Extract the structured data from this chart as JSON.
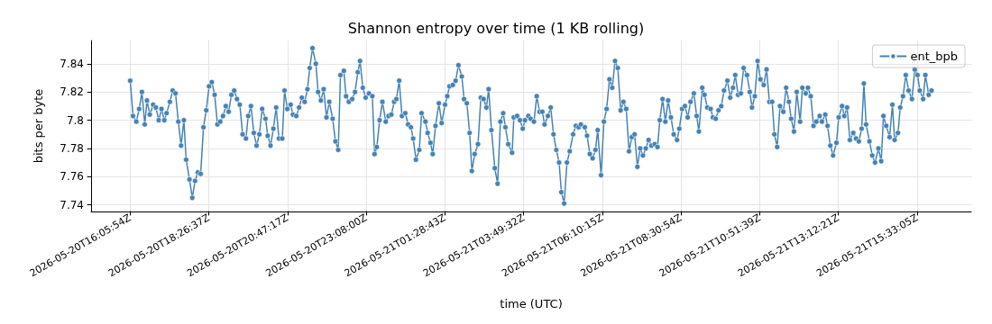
{
  "chart_data": {
    "type": "line",
    "title": "Shannon entropy over time (1 KB rolling)",
    "xlabel": "time (UTC)",
    "ylabel": "bits per byte",
    "xlim": [
      "2026-05-20T14:56",
      "2026-05-21T17:10"
    ],
    "ylim": [
      7.7353,
      7.8565
    ],
    "xticks": [
      "2026-05-20T16:05:54Z",
      "2026-05-20T18:26:37Z",
      "2026-05-20T20:47:17Z",
      "2026-05-20T23:08:00Z",
      "2026-05-21T01:28:43Z",
      "2026-05-21T03:49:32Z",
      "2026-05-21T06:10:15Z",
      "2026-05-21T08:30:54Z",
      "2026-05-21T10:51:39Z",
      "2026-05-21T13:12:21Z",
      "2026-05-21T15:33:05Z"
    ],
    "yticks": [
      7.74,
      7.76,
      7.78,
      7.8,
      7.82,
      7.84
    ],
    "grid": true,
    "legend": "top right",
    "marker": "circle",
    "line_style": "solid",
    "series": [
      {
        "name": "ent_bpb",
        "color": "#4682b4",
        "x": [
          "2026-05-20T16:06",
          "2026-05-20T16:11",
          "2026-05-20T16:17",
          "2026-05-20T16:22",
          "2026-05-20T16:27",
          "2026-05-20T16:32",
          "2026-05-20T16:36",
          "2026-05-20T16:41",
          "2026-05-20T16:47",
          "2026-05-20T16:52",
          "2026-05-20T16:57",
          "2026-05-20T17:02",
          "2026-05-20T17:07",
          "2026-05-20T17:11",
          "2026-05-20T17:17",
          "2026-05-20T17:22",
          "2026-05-20T17:27",
          "2026-05-20T17:32",
          "2026-05-20T17:37",
          "2026-05-20T17:42",
          "2026-05-20T17:46",
          "2026-05-20T17:52",
          "2026-05-20T17:57",
          "2026-05-20T18:02",
          "2026-05-20T18:07",
          "2026-05-20T18:12",
          "2026-05-20T18:17",
          "2026-05-20T18:22",
          "2026-05-20T18:27",
          "2026-05-20T18:32",
          "2026-05-20T18:37",
          "2026-05-20T18:42",
          "2026-05-20T18:47",
          "2026-05-20T18:52",
          "2026-05-20T18:57",
          "2026-05-20T19:02",
          "2026-05-20T19:07",
          "2026-05-20T19:12",
          "2026-05-20T19:17",
          "2026-05-20T19:22",
          "2026-05-20T19:27",
          "2026-05-20T19:33",
          "2026-05-20T19:37",
          "2026-05-20T19:42",
          "2026-05-20T19:47",
          "2026-05-20T19:52",
          "2026-05-20T19:57",
          "2026-05-20T20:02",
          "2026-05-20T20:08",
          "2026-05-20T20:12",
          "2026-05-20T20:17",
          "2026-05-20T20:22",
          "2026-05-20T20:27",
          "2026-05-20T20:32",
          "2026-05-20T20:38",
          "2026-05-20T20:42",
          "2026-05-20T20:47",
          "2026-05-20T20:53",
          "2026-05-20T20:57",
          "2026-05-20T21:03",
          "2026-05-20T21:08",
          "2026-05-20T21:13",
          "2026-05-20T21:18",
          "2026-05-20T21:23",
          "2026-05-20T21:27",
          "2026-05-20T21:32",
          "2026-05-20T21:38",
          "2026-05-20T21:42",
          "2026-05-20T21:47",
          "2026-05-20T21:52",
          "2026-05-20T21:57",
          "2026-05-20T22:02",
          "2026-05-20T22:08",
          "2026-05-20T22:13",
          "2026-05-20T22:18",
          "2026-05-20T22:22",
          "2026-05-20T22:28",
          "2026-05-20T22:32",
          "2026-05-20T22:37",
          "2026-05-20T22:43",
          "2026-05-20T22:48",
          "2026-05-20T22:53",
          "2026-05-20T22:57",
          "2026-05-20T23:02",
          "2026-05-20T23:07",
          "2026-05-20T23:13",
          "2026-05-20T23:19",
          "2026-05-20T23:23",
          "2026-05-20T23:27",
          "2026-05-20T23:32",
          "2026-05-20T23:37",
          "2026-05-20T23:43",
          "2026-05-20T23:48",
          "2026-05-20T23:53",
          "2026-05-20T23:58",
          "2026-05-21T00:02",
          "2026-05-21T00:07",
          "2026-05-21T00:12",
          "2026-05-21T00:18",
          "2026-05-21T00:23",
          "2026-05-21T00:28",
          "2026-05-21T00:32",
          "2026-05-21T00:37",
          "2026-05-21T00:43",
          "2026-05-21T00:47",
          "2026-05-21T00:54",
          "2026-05-21T00:58",
          "2026-05-21T01:03",
          "2026-05-21T01:07",
          "2026-05-21T01:12",
          "2026-05-21T01:18",
          "2026-05-21T01:23",
          "2026-05-21T01:29",
          "2026-05-21T01:33",
          "2026-05-21T01:37",
          "2026-05-21T01:43",
          "2026-05-21T01:48",
          "2026-05-21T01:53",
          "2026-05-21T01:59",
          "2026-05-21T02:03",
          "2026-05-21T02:08",
          "2026-05-21T02:13",
          "2026-05-21T02:17",
          "2026-05-21T02:22",
          "2026-05-21T02:28",
          "2026-05-21T02:33",
          "2026-05-21T02:38",
          "2026-05-21T02:43",
          "2026-05-21T02:47",
          "2026-05-21T02:52",
          "2026-05-21T02:58",
          "2026-05-21T03:03",
          "2026-05-21T03:08",
          "2026-05-21T03:13",
          "2026-05-21T03:17",
          "2026-05-21T03:22",
          "2026-05-21T03:29",
          "2026-05-21T03:32",
          "2026-05-21T03:38",
          "2026-05-21T03:43",
          "2026-05-21T03:48",
          "2026-05-21T03:52",
          "2026-05-21T03:58",
          "2026-05-21T04:02",
          "2026-05-21T04:08",
          "2026-05-21T04:13",
          "2026-05-21T04:18",
          "2026-05-21T04:23",
          "2026-05-21T04:27",
          "2026-05-21T04:33",
          "2026-05-21T04:38",
          "2026-05-21T04:43",
          "2026-05-21T04:48",
          "2026-05-21T04:53",
          "2026-05-21T04:57",
          "2026-05-21T05:02",
          "2026-05-21T05:07",
          "2026-05-21T05:12",
          "2026-05-21T05:18",
          "2026-05-21T05:23",
          "2026-05-21T05:28",
          "2026-05-21T05:32",
          "2026-05-21T05:39",
          "2026-05-21T05:43",
          "2026-05-21T05:48",
          "2026-05-21T05:53",
          "2026-05-21T05:58",
          "2026-05-21T06:02",
          "2026-05-21T06:08",
          "2026-05-21T06:13",
          "2026-05-21T06:18",
          "2026-05-21T06:23",
          "2026-05-21T06:28",
          "2026-05-21T06:33",
          "2026-05-21T06:38",
          "2026-05-21T06:43",
          "2026-05-21T06:48",
          "2026-05-21T06:53",
          "2026-05-21T06:58",
          "2026-05-21T07:03",
          "2026-05-21T07:08",
          "2026-05-21T07:13",
          "2026-05-21T07:18",
          "2026-05-21T07:23",
          "2026-05-21T07:28",
          "2026-05-21T07:33",
          "2026-05-21T07:38",
          "2026-05-21T07:44",
          "2026-05-21T07:49",
          "2026-05-21T07:53",
          "2026-05-21T07:58",
          "2026-05-21T08:03",
          "2026-05-21T08:08",
          "2026-05-21T08:13",
          "2026-05-21T08:18",
          "2026-05-21T08:24",
          "2026-05-21T08:28",
          "2026-05-21T08:33",
          "2026-05-21T08:38",
          "2026-05-21T08:43",
          "2026-05-21T08:48",
          "2026-05-21T08:54",
          "2026-05-21T08:59",
          "2026-05-21T09:03",
          "2026-05-21T09:09",
          "2026-05-21T09:13",
          "2026-05-21T09:18",
          "2026-05-21T09:24",
          "2026-05-21T09:28",
          "2026-05-21T09:33",
          "2026-05-21T09:38",
          "2026-05-21T09:43",
          "2026-05-21T09:48",
          "2026-05-21T09:54",
          "2026-05-21T09:59",
          "2026-05-21T10:04",
          "2026-05-21T10:08",
          "2026-05-21T10:13",
          "2026-05-21T10:18",
          "2026-05-21T10:23",
          "2026-05-21T10:29",
          "2026-05-21T10:34",
          "2026-05-21T10:38",
          "2026-05-21T10:43",
          "2026-05-21T10:48",
          "2026-05-21T10:53",
          "2026-05-21T10:59",
          "2026-05-21T11:04",
          "2026-05-21T11:09",
          "2026-05-21T11:14",
          "2026-05-21T11:18",
          "2026-05-21T11:23",
          "2026-05-21T11:28",
          "2026-05-21T11:34",
          "2026-05-21T11:39",
          "2026-05-21T11:44",
          "2026-05-21T11:48",
          "2026-05-21T11:53",
          "2026-05-21T11:58",
          "2026-05-21T12:04",
          "2026-05-21T12:08",
          "2026-05-21T12:14",
          "2026-05-21T12:18",
          "2026-05-21T12:23",
          "2026-05-21T12:28",
          "2026-05-21T12:33",
          "2026-05-21T12:39",
          "2026-05-21T12:43",
          "2026-05-21T12:49",
          "2026-05-21T12:53",
          "2026-05-21T12:58",
          "2026-05-21T13:03",
          "2026-05-21T13:09",
          "2026-05-21T13:13",
          "2026-05-21T13:19",
          "2026-05-21T13:23",
          "2026-05-21T13:28",
          "2026-05-21T13:33",
          "2026-05-21T13:39",
          "2026-05-21T13:44",
          "2026-05-21T13:49",
          "2026-05-21T13:54",
          "2026-05-21T13:58",
          "2026-05-21T14:02",
          "2026-05-21T14:08",
          "2026-05-21T14:13",
          "2026-05-21T14:18",
          "2026-05-21T14:24",
          "2026-05-21T14:29",
          "2026-05-21T14:33",
          "2026-05-21T14:38",
          "2026-05-21T14:44",
          "2026-05-21T14:49",
          "2026-05-21T14:53",
          "2026-05-21T14:59",
          "2026-05-21T15:03",
          "2026-05-21T15:08",
          "2026-05-21T15:13",
          "2026-05-21T15:18",
          "2026-05-21T15:24",
          "2026-05-21T15:29",
          "2026-05-21T15:34",
          "2026-05-21T15:38",
          "2026-05-21T15:44",
          "2026-05-21T15:48",
          "2026-05-21T15:54",
          "2026-05-21T15:59"
        ],
        "values": [
          7.828,
          7.803,
          7.799,
          7.808,
          7.82,
          7.797,
          7.814,
          7.804,
          7.811,
          7.809,
          7.8,
          7.808,
          7.8,
          7.805,
          7.813,
          7.821,
          7.819,
          7.799,
          7.782,
          7.8,
          7.772,
          7.758,
          7.745,
          7.757,
          7.763,
          7.762,
          7.795,
          7.807,
          7.824,
          7.827,
          7.818,
          7.797,
          7.799,
          7.803,
          7.81,
          7.806,
          7.818,
          7.821,
          7.815,
          7.811,
          7.79,
          7.787,
          7.803,
          7.81,
          7.791,
          7.782,
          7.79,
          7.808,
          7.801,
          7.789,
          7.782,
          7.794,
          7.809,
          7.787,
          7.787,
          7.821,
          7.808,
          7.811,
          7.804,
          7.803,
          7.809,
          7.816,
          7.813,
          7.822,
          7.837,
          7.851,
          7.84,
          7.82,
          7.814,
          7.822,
          7.802,
          7.813,
          7.801,
          7.785,
          7.779,
          7.832,
          7.835,
          7.817,
          7.813,
          7.815,
          7.82,
          7.834,
          7.842,
          7.823,
          7.816,
          7.819,
          7.817,
          7.776,
          7.781,
          7.8,
          7.813,
          7.799,
          7.803,
          7.804,
          7.813,
          7.815,
          7.828,
          7.803,
          7.805,
          7.797,
          7.795,
          7.787,
          7.772,
          7.779,
          7.805,
          7.799,
          7.791,
          7.784,
          7.776,
          7.796,
          7.812,
          7.798,
          7.811,
          7.817,
          7.824,
          7.825,
          7.828,
          7.839,
          7.831,
          7.815,
          7.812,
          7.791,
          7.764,
          7.776,
          7.783,
          7.816,
          7.815,
          7.809,
          7.822,
          7.793,
          7.766,
          7.755,
          7.799,
          7.805,
          7.795,
          7.783,
          7.777,
          7.802,
          7.803,
          7.8,
          7.794,
          7.8,
          7.803,
          7.801,
          7.799,
          7.817,
          7.806,
          7.806,
          7.797,
          7.803,
          7.809,
          7.79,
          7.779,
          7.77,
          7.749,
          7.741,
          7.77,
          7.778,
          7.79,
          7.796,
          7.795,
          7.797,
          7.795,
          7.789,
          7.776,
          7.773,
          7.779,
          7.793,
          7.761,
          7.799,
          7.808,
          7.829,
          7.823,
          7.842,
          7.837,
          7.807,
          7.813,
          7.808,
          7.778,
          7.788,
          7.79,
          7.767,
          7.78,
          7.775,
          7.78,
          7.786,
          7.782,
          7.783,
          7.781,
          7.8,
          7.815,
          7.799,
          7.814,
          7.802,
          7.79,
          7.786,
          7.794,
          7.808,
          7.81,
          7.802,
          7.813,
          7.819,
          7.803,
          7.792,
          7.823,
          7.818,
          7.809,
          7.808,
          7.802,
          7.801,
          7.807,
          7.81,
          7.821,
          7.828,
          7.816,
          7.823,
          7.832,
          7.818,
          7.819,
          7.837,
          7.832,
          7.82,
          7.809,
          7.817,
          7.842,
          7.829,
          7.825,
          7.836,
          7.813,
          7.813,
          7.79,
          7.781,
          7.81,
          7.806,
          7.823,
          7.813,
          7.801,
          7.792,
          7.82,
          7.799,
          7.823,
          7.819,
          7.823,
          7.817,
          7.796,
          7.799,
          7.803,
          7.799,
          7.804,
          7.796,
          7.782,
          7.775,
          7.784,
          7.802,
          7.81,
          7.803,
          7.809,
          7.786,
          7.791,
          7.787,
          7.785,
          7.794,
          7.826,
          7.797,
          7.785,
          7.775,
          7.77,
          7.78,
          7.771,
          7.803,
          7.796,
          7.788,
          7.811,
          7.786,
          7.791,
          7.809,
          7.817,
          7.832,
          7.821,
          7.815,
          7.836,
          7.832,
          7.821,
          7.815,
          7.832,
          7.818,
          7.821
        ]
      }
    ]
  }
}
